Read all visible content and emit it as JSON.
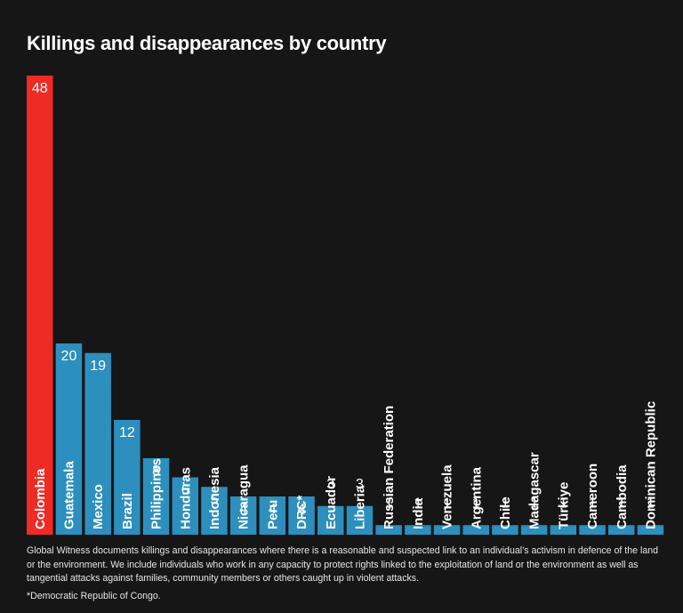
{
  "chart_data": {
    "type": "bar",
    "title": "Killings and disappearances by country",
    "categories": [
      "Colombia",
      "Guatemala",
      "Mexico",
      "Brazil",
      "Philippines",
      "Honduras",
      "Indonesia",
      "Nicaragua",
      "Peru",
      "DRC*",
      "Ecuador",
      "Liberia",
      "Russian Federation",
      "India",
      "Venezuela",
      "Argentina",
      "Chile",
      "Madagascar",
      "Türkiye",
      "Cameroon",
      "Cambodia",
      "Dominican Republic"
    ],
    "values": [
      48,
      20,
      19,
      12,
      8,
      6,
      5,
      4,
      4,
      4,
      3,
      3,
      1,
      1,
      1,
      1,
      1,
      1,
      1,
      1,
      1,
      1
    ],
    "ylim": [
      0,
      48
    ],
    "grid": false,
    "legend": "none",
    "colors": {
      "highlight": "#ee2b24",
      "bar": "#2c8fbd",
      "background": "#161616"
    },
    "highlight_index": 0
  },
  "note": "Global Witness documents killings and disappearances where there is a reasonable and suspected link to an individual’s activism in defence of the land or the environment. We include individuals who work in any capacity to protect rights linked to the exploitation of land or the environment as well as tangential attacks against families, community members or others caught up in violent attacks.",
  "footnote": "*Democratic Republic of Congo."
}
